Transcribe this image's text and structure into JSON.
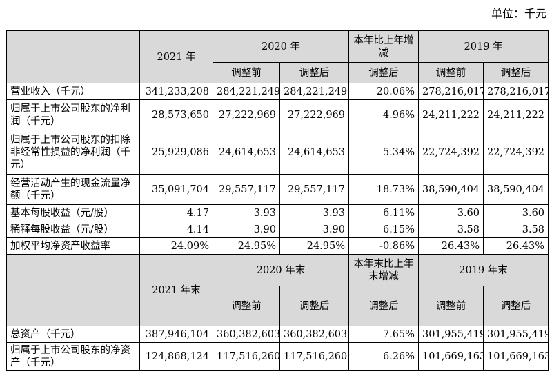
{
  "unit_note": "单位：千元",
  "header1": {
    "y2021": "2021 年",
    "y2020": "2020 年",
    "change": "本年比上年增减",
    "y2019": "2019 年",
    "before": "调整前",
    "after": "调整后"
  },
  "rows1": [
    {
      "label": "营业收入（千元）",
      "v2021": "341,233,208",
      "v2020_before": "284,221,249",
      "v2020_after": "284,221,249",
      "change": "20.06%",
      "v2019_before": "278,216,017",
      "v2019_after": "278,216,017"
    },
    {
      "label": "归属于上市公司股东的净利润（千元）",
      "v2021": "28,573,650",
      "v2020_before": "27,222,969",
      "v2020_after": "27,222,969",
      "change": "4.96%",
      "v2019_before": "24,211,222",
      "v2019_after": "24,211,222"
    },
    {
      "label": "归属于上市公司股东的扣除非经常性损益的净利润（千元）",
      "v2021": "25,929,086",
      "v2020_before": "24,614,653",
      "v2020_after": "24,614,653",
      "change": "5.34%",
      "v2019_before": "22,724,392",
      "v2019_after": "22,724,392"
    },
    {
      "label": "经营活动产生的现金流量净额（千元）",
      "v2021": "35,091,704",
      "v2020_before": "29,557,117",
      "v2020_after": "29,557,117",
      "change": "18.73%",
      "v2019_before": "38,590,404",
      "v2019_after": "38,590,404"
    },
    {
      "label": "基本每股收益（元/股）",
      "v2021": "4.17",
      "v2020_before": "3.93",
      "v2020_after": "3.93",
      "change": "6.11%",
      "v2019_before": "3.60",
      "v2019_after": "3.60"
    },
    {
      "label": "稀释每股收益（元/股）",
      "v2021": "4.14",
      "v2020_before": "3.90",
      "v2020_after": "3.90",
      "change": "6.15%",
      "v2019_before": "3.58",
      "v2019_after": "3.58"
    },
    {
      "label": "加权平均净资产收益率",
      "v2021": "24.09%",
      "v2020_before": "24.95%",
      "v2020_after": "24.95%",
      "change": "-0.86%",
      "v2019_before": "26.43%",
      "v2019_after": "26.43%"
    }
  ],
  "header2": {
    "y2021": "2021 年末",
    "y2020": "2020 年末",
    "change": "本年末比上年末增减",
    "y2019": "2019 年末",
    "before": "调整前",
    "after": "调整后"
  },
  "rows2": [
    {
      "label": "总资产（千元）",
      "v2021": "387,946,104",
      "v2020_before": "360,382,603",
      "v2020_after": "360,382,603",
      "change": "7.65%",
      "v2019_before": "301,955,419",
      "v2019_after": "301,955,419"
    },
    {
      "label": "归属于上市公司股东的净资产（千元）",
      "v2021": "124,868,124",
      "v2020_before": "117,516,260",
      "v2020_after": "117,516,260",
      "change": "6.26%",
      "v2019_before": "101,669,163",
      "v2019_after": "101,669,163"
    }
  ]
}
